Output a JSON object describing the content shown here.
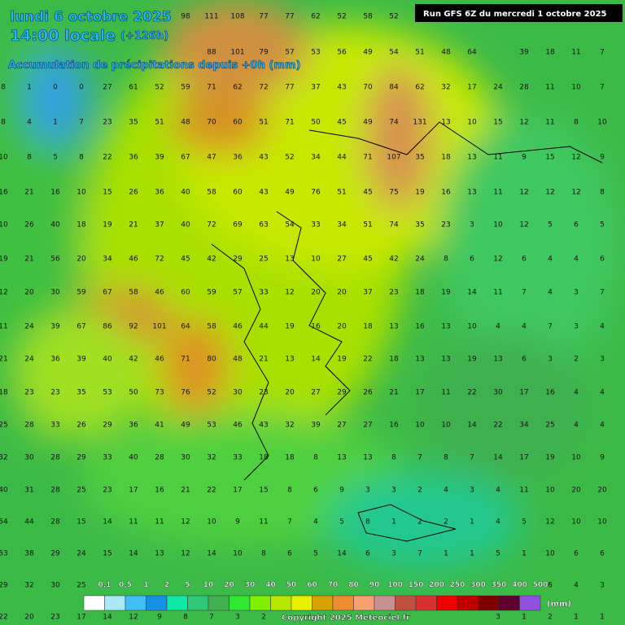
{
  "header": {
    "date": "lundi 6 octobre 2025",
    "time": "14:00 locale",
    "lead": "(+126h)",
    "subtitle": "Accumulation de précipitations depuis +0h (mm)",
    "run": "Run GFS 6Z du mercredi 1 octobre 2025"
  },
  "grid": {
    "rows": [
      [
        null,
        null,
        null,
        null,
        null,
        null,
        null,
        98,
        111,
        108,
        77,
        77,
        62,
        52,
        58,
        52,
        null,
        null,
        null,
        null,
        null,
        null,
        null,
        null
      ],
      [
        null,
        null,
        null,
        null,
        null,
        null,
        null,
        null,
        88,
        101,
        79,
        57,
        53,
        56,
        49,
        54,
        51,
        48,
        64,
        null,
        39,
        18,
        11,
        7
      ],
      [
        8,
        1,
        0,
        0,
        27,
        61,
        52,
        59,
        71,
        62,
        72,
        77,
        37,
        43,
        70,
        84,
        62,
        32,
        17,
        24,
        28,
        11,
        10,
        7
      ],
      [
        8,
        4,
        1,
        7,
        23,
        35,
        51,
        48,
        70,
        60,
        51,
        71,
        50,
        45,
        49,
        74,
        131,
        13,
        10,
        15,
        12,
        11,
        8,
        10
      ],
      [
        10,
        8,
        5,
        8,
        22,
        36,
        39,
        67,
        47,
        36,
        43,
        52,
        34,
        44,
        71,
        107,
        35,
        18,
        13,
        11,
        9,
        15,
        12,
        9
      ],
      [
        16,
        21,
        16,
        10,
        15,
        26,
        36,
        40,
        58,
        60,
        43,
        49,
        76,
        51,
        45,
        75,
        19,
        16,
        13,
        11,
        12,
        12,
        12,
        8
      ],
      [
        10,
        26,
        40,
        18,
        19,
        21,
        37,
        40,
        72,
        69,
        63,
        54,
        33,
        34,
        51,
        74,
        35,
        23,
        3,
        10,
        12,
        5,
        6,
        5
      ],
      [
        19,
        21,
        56,
        20,
        34,
        46,
        72,
        45,
        42,
        29,
        25,
        13,
        10,
        27,
        45,
        42,
        24,
        8,
        6,
        12,
        6,
        4,
        4,
        6
      ],
      [
        12,
        20,
        30,
        59,
        67,
        58,
        46,
        60,
        59,
        57,
        33,
        12,
        20,
        20,
        37,
        23,
        18,
        19,
        14,
        11,
        7,
        4,
        3,
        7
      ],
      [
        11,
        24,
        39,
        67,
        86,
        92,
        101,
        64,
        58,
        46,
        44,
        19,
        16,
        20,
        18,
        13,
        16,
        13,
        10,
        4,
        4,
        7,
        3,
        4
      ],
      [
        21,
        24,
        36,
        39,
        40,
        42,
        46,
        71,
        80,
        48,
        21,
        13,
        14,
        19,
        22,
        18,
        13,
        13,
        19,
        13,
        6,
        3,
        2,
        3
      ],
      [
        18,
        23,
        23,
        35,
        53,
        50,
        73,
        76,
        52,
        30,
        23,
        20,
        27,
        29,
        26,
        21,
        17,
        11,
        22,
        30,
        17,
        16,
        4,
        4
      ],
      [
        25,
        28,
        33,
        26,
        29,
        36,
        41,
        49,
        53,
        46,
        43,
        32,
        39,
        27,
        27,
        16,
        10,
        10,
        14,
        22,
        34,
        25,
        4,
        4
      ],
      [
        32,
        30,
        28,
        29,
        33,
        40,
        28,
        30,
        32,
        33,
        18,
        18,
        8,
        13,
        13,
        8,
        7,
        8,
        7,
        14,
        17,
        19,
        10,
        9
      ],
      [
        40,
        31,
        28,
        25,
        23,
        17,
        16,
        21,
        22,
        17,
        15,
        8,
        6,
        9,
        3,
        3,
        2,
        4,
        3,
        4,
        11,
        10,
        20,
        20
      ],
      [
        54,
        44,
        28,
        15,
        14,
        11,
        11,
        12,
        10,
        9,
        11,
        7,
        4,
        5,
        8,
        1,
        2,
        2,
        1,
        4,
        5,
        12,
        10,
        10
      ],
      [
        53,
        38,
        29,
        24,
        15,
        14,
        13,
        12,
        14,
        10,
        8,
        6,
        5,
        14,
        6,
        3,
        7,
        1,
        1,
        5,
        1,
        10,
        6,
        6
      ],
      [
        29,
        32,
        30,
        25,
        null,
        null,
        null,
        null,
        null,
        null,
        null,
        null,
        null,
        null,
        null,
        null,
        null,
        null,
        null,
        null,
        null,
        6,
        4,
        3
      ],
      [
        22,
        20,
        23,
        17,
        14,
        12,
        9,
        8,
        7,
        3,
        2,
        null,
        null,
        null,
        null,
        null,
        null,
        null,
        null,
        3,
        1,
        2,
        1,
        1
      ]
    ]
  },
  "legend": {
    "labels": [
      "0,1",
      "0,5",
      "1",
      "2",
      "5",
      "10",
      "20",
      "30",
      "40",
      "50",
      "60",
      "70",
      "80",
      "90",
      "100",
      "150",
      "200",
      "250",
      "300",
      "350",
      "400",
      "500"
    ],
    "colors": [
      "#ffffff",
      "#a8e8f8",
      "#40c0f0",
      "#1890e8",
      "#10e8a8",
      "#30c878",
      "#40b050",
      "#30e830",
      "#80f000",
      "#b8e800",
      "#e8f000",
      "#d8a000",
      "#f08c30",
      "#f8a070",
      "#c89090",
      "#c05040",
      "#d83030",
      "#f00000",
      "#c00000",
      "#800000",
      "#600030",
      "#9050e0"
    ],
    "unit": "(mm)"
  },
  "footer": {
    "copyright": "Copyright 2025 Meteociel.fr"
  }
}
